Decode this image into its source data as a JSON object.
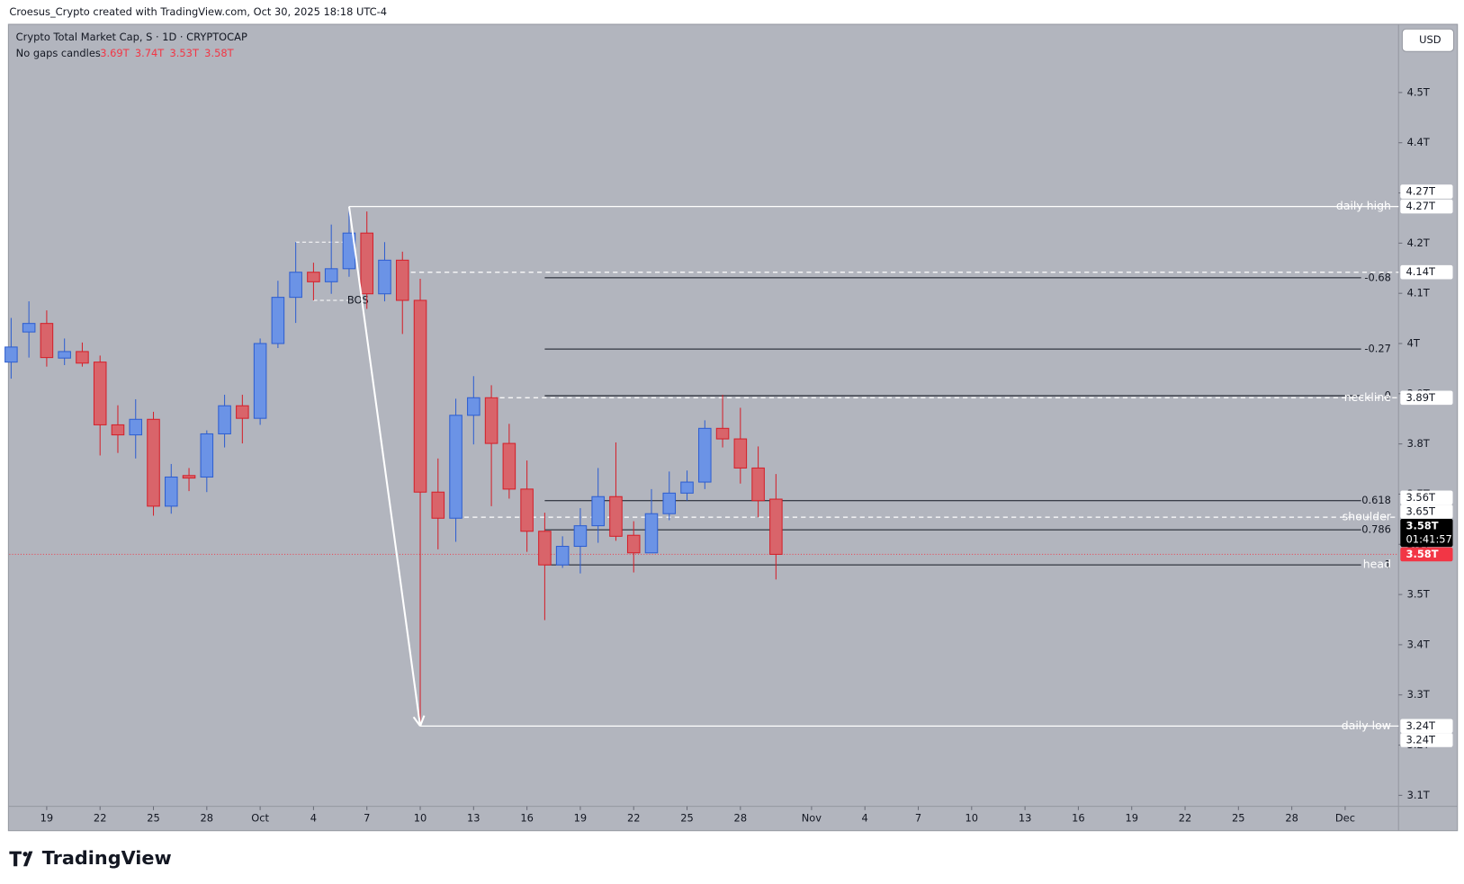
{
  "header": {
    "credit": "Croesus_Crypto created with TradingView.com, Oct 30, 2025 18:18 UTC-4"
  },
  "footer": {
    "brand": "TradingView"
  },
  "chart_data": {
    "type": "candlestick",
    "title": "Crypto Total Market Cap, S · 1D · CRYPTOCAP",
    "subtitle": "No gaps candles",
    "ohlc_labels": [
      "3.69T",
      "3.74T",
      "3.53T",
      "3.58T"
    ],
    "currency": "USD",
    "x": [
      0,
      1,
      2,
      3,
      4,
      5,
      6,
      7,
      8,
      9,
      10,
      11,
      12,
      13,
      14,
      15,
      16,
      17,
      18,
      19,
      20,
      21,
      22,
      23,
      24,
      25,
      26,
      27,
      28,
      29,
      30,
      31,
      32,
      33,
      34,
      35,
      36,
      37,
      38,
      39,
      40,
      41,
      42,
      43
    ],
    "series": {
      "open": [
        3.963,
        4.023,
        4.04,
        3.971,
        3.984,
        3.963,
        3.838,
        3.818,
        3.849,
        3.676,
        3.737,
        3.734,
        3.82,
        3.876,
        3.851,
        4.0,
        4.092,
        4.142,
        4.123,
        4.149,
        4.22,
        4.099,
        4.166,
        4.086,
        3.704,
        3.652,
        3.857,
        3.892,
        3.801,
        3.71,
        3.626,
        3.559,
        3.596,
        3.637,
        3.695,
        3.618,
        3.583,
        3.661,
        3.702,
        3.724,
        3.831,
        3.81,
        3.752,
        3.69
      ],
      "high": [
        4.051,
        4.084,
        4.066,
        4.01,
        4.002,
        3.976,
        3.877,
        3.889,
        3.864,
        3.76,
        3.752,
        3.827,
        3.898,
        3.898,
        4.01,
        4.125,
        4.202,
        4.161,
        4.237,
        4.271,
        4.263,
        4.202,
        4.183,
        4.129,
        3.771,
        3.89,
        3.935,
        3.917,
        3.84,
        3.767,
        3.663,
        3.616,
        3.672,
        3.752,
        3.803,
        3.646,
        3.71,
        3.745,
        3.747,
        3.847,
        3.898,
        3.872,
        3.795,
        3.74
      ],
      "low": [
        3.93,
        3.972,
        3.954,
        3.957,
        3.954,
        3.777,
        3.782,
        3.771,
        3.657,
        3.661,
        3.706,
        3.704,
        3.793,
        3.801,
        3.838,
        3.991,
        4.041,
        4.086,
        4.099,
        4.133,
        4.069,
        4.084,
        4.019,
        3.238,
        3.59,
        3.605,
        3.799,
        3.676,
        3.691,
        3.585,
        3.449,
        3.553,
        3.542,
        3.603,
        3.607,
        3.544,
        3.583,
        3.648,
        3.687,
        3.71,
        3.793,
        3.721,
        3.654,
        3.53
      ],
      "close": [
        3.993,
        4.04,
        3.972,
        3.984,
        3.961,
        3.838,
        3.818,
        3.849,
        3.676,
        3.734,
        3.732,
        3.82,
        3.876,
        3.851,
        4.0,
        4.092,
        4.142,
        4.123,
        4.149,
        4.22,
        4.099,
        4.166,
        4.086,
        3.704,
        3.652,
        3.857,
        3.892,
        3.801,
        3.71,
        3.626,
        3.559,
        3.596,
        3.637,
        3.695,
        3.616,
        3.583,
        3.661,
        3.702,
        3.724,
        3.831,
        3.81,
        3.752,
        3.687,
        3.58
      ]
    },
    "up_color": "#6b93e6",
    "down_color": "#d9646a",
    "xlim": [
      -0.1,
      78
    ],
    "xticks": [
      {
        "value": 2,
        "label": "19"
      },
      {
        "value": 5,
        "label": "22"
      },
      {
        "value": 8,
        "label": "25"
      },
      {
        "value": 11,
        "label": "28"
      },
      {
        "value": 14,
        "label": "Oct"
      },
      {
        "value": 17,
        "label": "4"
      },
      {
        "value": 20,
        "label": "7"
      },
      {
        "value": 23,
        "label": "10"
      },
      {
        "value": 26,
        "label": "13"
      },
      {
        "value": 29,
        "label": "16"
      },
      {
        "value": 32,
        "label": "19"
      },
      {
        "value": 35,
        "label": "22"
      },
      {
        "value": 38,
        "label": "25"
      },
      {
        "value": 41,
        "label": "28"
      },
      {
        "value": 45,
        "label": "Nov"
      },
      {
        "value": 48,
        "label": "4"
      },
      {
        "value": 51,
        "label": "7"
      },
      {
        "value": 54,
        "label": "10"
      },
      {
        "value": 57,
        "label": "13"
      },
      {
        "value": 60,
        "label": "16"
      },
      {
        "value": 63,
        "label": "19"
      },
      {
        "value": 66,
        "label": "22"
      },
      {
        "value": 69,
        "label": "25"
      },
      {
        "value": 72,
        "label": "28"
      },
      {
        "value": 75,
        "label": "Dec"
      }
    ],
    "ylim": [
      3.078,
      4.634
    ],
    "yticks": [
      {
        "value": 3.1,
        "label": "3.1T"
      },
      {
        "value": 3.2,
        "label": "3.2T"
      },
      {
        "value": 3.3,
        "label": "3.3T"
      },
      {
        "value": 3.4,
        "label": "3.4T"
      },
      {
        "value": 3.5,
        "label": "3.5T"
      },
      {
        "value": 3.6,
        "label": "3.6T"
      },
      {
        "value": 3.7,
        "label": "3.7T"
      },
      {
        "value": 3.8,
        "label": "3.8T"
      },
      {
        "value": 3.9,
        "label": "3.9T"
      },
      {
        "value": 4,
        "label": "4T"
      },
      {
        "value": 4.1,
        "label": "4.1T"
      },
      {
        "value": 4.2,
        "label": "4.2T"
      },
      {
        "value": 4.3,
        "label": "4.3T"
      },
      {
        "value": 4.4,
        "label": "4.4T"
      },
      {
        "value": 4.5,
        "label": "4.5T"
      }
    ],
    "grid": false,
    "annotations": [
      {
        "text": "daily high",
        "value": 4.273,
        "label": "4.27T",
        "x_start": 19,
        "style": "solid"
      },
      {
        "value": 4.142,
        "label": "4.14T",
        "x_start": 22,
        "style": "dashed"
      },
      {
        "text": "neckline",
        "value": 3.892,
        "label": "3.89T",
        "x_start": 27,
        "style": "dashed"
      },
      {
        "text": "shoulder",
        "value": 3.654,
        "label": "3.65T",
        "x_start": 25,
        "style": "dashed"
      },
      {
        "text": "head",
        "value": 3.559,
        "label": "3.56T",
        "x_start": 30,
        "style": "none"
      },
      {
        "text": "daily low",
        "value": 3.238,
        "label": "3.24T",
        "x_start": 23,
        "style": "solid"
      }
    ],
    "extra_tags": [
      {
        "value": 4.271,
        "label": "4.27T"
      },
      {
        "value": 3.238,
        "label": "3.24T"
      }
    ],
    "price_tags": [
      {
        "value": 3.58,
        "label": "3.58T",
        "color": "#f23645"
      },
      {
        "value": 3.58,
        "label": "3.58T",
        "countdown": "01:41:57",
        "color": "#000000"
      }
    ],
    "fib": {
      "x_start": 30,
      "levels": [
        {
          "level": -0.68,
          "value": 4.131
        },
        {
          "level": -0.27,
          "value": 3.989
        },
        {
          "level": 0,
          "value": 3.896
        },
        {
          "level": 0.618,
          "value": 3.687
        },
        {
          "level": 0.786,
          "value": 3.629
        },
        {
          "level": 1,
          "value": 3.559
        }
      ]
    },
    "bos": {
      "text": "BOS",
      "value": 4.086,
      "high": 4.202,
      "x_start": 17,
      "x_end": 19
    },
    "arrow": {
      "from": [
        19,
        4.273
      ],
      "to": [
        23,
        3.238
      ]
    }
  }
}
